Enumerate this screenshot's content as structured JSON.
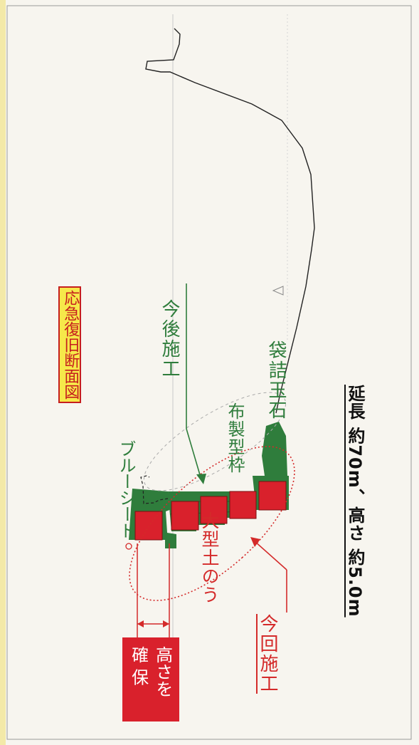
{
  "title": "応急復旧断面図",
  "labels": {
    "future_work": "今後施工",
    "bagged_stones": "袋詰玉石",
    "fabric_formwork": "布製型枠",
    "blue_sheet": "ブルーシート",
    "large_sandbags": "大型土のう",
    "this_work": "今回施工"
  },
  "height_box": {
    "line1": "高さを",
    "line2": "確 保"
  },
  "summary": "延長 約70m、高さ 約5.0m",
  "colors": {
    "background": "#f7f5ef",
    "sandbag_red": "#d9212c",
    "green": "#2f7d3c",
    "annotation_red": "#d42a2a",
    "title_bg": "#f6e84a"
  }
}
